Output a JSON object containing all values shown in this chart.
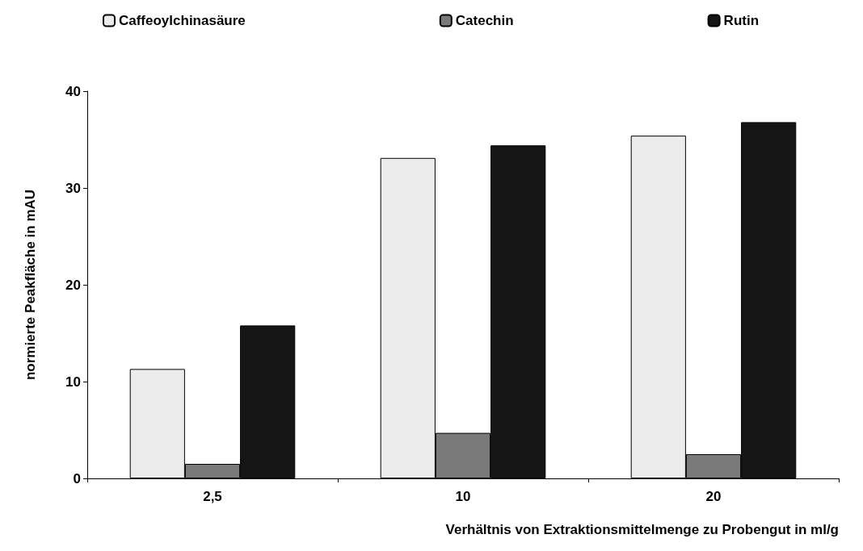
{
  "chart_data": {
    "type": "bar",
    "xlabel": "Verhältnis von Extraktionsmittelmenge zu Probengut in ml/g",
    "ylabel": "normierte Peakfläche in mAU",
    "categories": [
      "2,5",
      "10",
      "20"
    ],
    "series": [
      {
        "name": "Caffeoylchinasäure",
        "color": "#ececec",
        "values": [
          11.3,
          33.1,
          35.4
        ]
      },
      {
        "name": "Catechin",
        "color": "#7a7a7a",
        "values": [
          1.5,
          4.7,
          2.5
        ]
      },
      {
        "name": "Rutin",
        "color": "#151515",
        "values": [
          15.8,
          34.4,
          36.8
        ]
      }
    ],
    "ylim": [
      0,
      40
    ],
    "yticks": [
      0,
      10,
      20,
      30,
      40
    ],
    "grid": false,
    "legend": "top"
  }
}
